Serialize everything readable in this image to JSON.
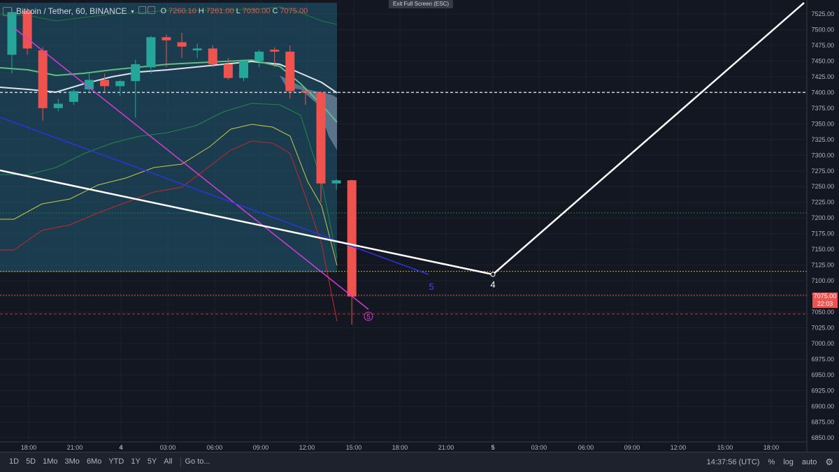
{
  "header": {
    "symbol_label": "Bitcoin / Tether, 60, BINANCE",
    "ohlc": {
      "o_label": "O",
      "o_value": "7260.10",
      "h_label": "H",
      "h_value": "7261.00",
      "l_label": "L",
      "l_value": "7030.00",
      "c_label": "C",
      "c_value": "7075.00"
    }
  },
  "exit_fullscreen_label": "Exit Full Screen (ESC)",
  "price_axis": {
    "ticks": [
      "7525.00",
      "7500.00",
      "7475.00",
      "7450.00",
      "7425.00",
      "7400.00",
      "7375.00",
      "7350.00",
      "7325.00",
      "7300.00",
      "7275.00",
      "7250.00",
      "7225.00",
      "7200.00",
      "7175.00",
      "7150.00",
      "7125.00",
      "7100.00",
      "7075.00",
      "7050.00",
      "7025.00",
      "7000.00",
      "6975.00",
      "6950.00",
      "6925.00",
      "6900.00",
      "6875.00",
      "6850.00"
    ],
    "last_price": "7075.00",
    "countdown": "22:03"
  },
  "time_axis": {
    "labels": [
      "18:00",
      "21:00",
      "4",
      "03:00",
      "06:00",
      "09:00",
      "12:00",
      "15:00",
      "18:00",
      "21:00",
      "5",
      "03:00",
      "06:00",
      "09:00",
      "12:00",
      "15:00",
      "18:00"
    ]
  },
  "annotations": {
    "wave_4_white": "4",
    "wave_5_blue": "5",
    "wave_5_circled": "5"
  },
  "bottom_bar": {
    "ranges": [
      "1D",
      "5D",
      "1Mo",
      "3Mo",
      "6Mo",
      "YTD",
      "1Y",
      "5Y",
      "All"
    ],
    "goto_label": "Go to...",
    "clock": "14:37:56 (UTC)",
    "percent_label": "%",
    "log_label": "log",
    "auto_label": "auto"
  },
  "colors": {
    "background": "#131722",
    "up_candle": "#26a69a",
    "down_candle": "#ef5350",
    "shaded_region": "#1f4a5f",
    "white_line": "#ffffff",
    "blue_line": "#2a34e0",
    "magenta_line": "#d63bd6"
  },
  "chart_data": {
    "type": "candlestick",
    "symbol": "Bitcoin / Tether",
    "interval": "60",
    "exchange": "BINANCE",
    "ylim": [
      6840,
      7540
    ],
    "candles": [
      {
        "o": 7460,
        "h": 7535,
        "l": 7430,
        "c": 7528
      },
      {
        "o": 7530,
        "h": 7535,
        "l": 7460,
        "c": 7470
      },
      {
        "o": 7467,
        "h": 7472,
        "l": 7355,
        "c": 7375
      },
      {
        "o": 7375,
        "h": 7390,
        "l": 7370,
        "c": 7382
      },
      {
        "o": 7385,
        "h": 7405,
        "l": 7380,
        "c": 7402
      },
      {
        "o": 7405,
        "h": 7430,
        "l": 7400,
        "c": 7420
      },
      {
        "o": 7420,
        "h": 7430,
        "l": 7400,
        "c": 7410
      },
      {
        "o": 7410,
        "h": 7420,
        "l": 7395,
        "c": 7418
      },
      {
        "o": 7418,
        "h": 7452,
        "l": 7360,
        "c": 7445
      },
      {
        "o": 7440,
        "h": 7490,
        "l": 7430,
        "c": 7488
      },
      {
        "o": 7488,
        "h": 7492,
        "l": 7440,
        "c": 7483
      },
      {
        "o": 7480,
        "h": 7495,
        "l": 7455,
        "c": 7473
      },
      {
        "o": 7467,
        "h": 7478,
        "l": 7455,
        "c": 7470
      },
      {
        "o": 7470,
        "h": 7475,
        "l": 7440,
        "c": 7445
      },
      {
        "o": 7445,
        "h": 7455,
        "l": 7420,
        "c": 7423
      },
      {
        "o": 7423,
        "h": 7450,
        "l": 7418,
        "c": 7450
      },
      {
        "o": 7450,
        "h": 7468,
        "l": 7440,
        "c": 7465
      },
      {
        "o": 7468,
        "h": 7472,
        "l": 7440,
        "c": 7465
      },
      {
        "o": 7465,
        "h": 7475,
        "l": 7390,
        "c": 7402
      },
      {
        "o": 7402,
        "h": 7405,
        "l": 7380,
        "c": 7400
      },
      {
        "o": 7400,
        "h": 7402,
        "l": 7225,
        "c": 7255
      },
      {
        "o": 7255,
        "h": 7262,
        "l": 7245,
        "c": 7260
      },
      {
        "o": 7260.1,
        "h": 7261,
        "l": 7030,
        "c": 7075
      }
    ],
    "horizontal_lines": [
      {
        "price": 7400,
        "color": "#d1d4dc",
        "style": "dashed"
      },
      {
        "price": 7208,
        "color": "#1b7f3a",
        "style": "dotted"
      },
      {
        "price": 7115,
        "color": "#c8b400",
        "style": "dotted"
      },
      {
        "price": 7077,
        "color": "#ef5350",
        "style": "dotted"
      },
      {
        "price": 7047,
        "color": "#d32f2f",
        "style": "dashed"
      }
    ]
  }
}
